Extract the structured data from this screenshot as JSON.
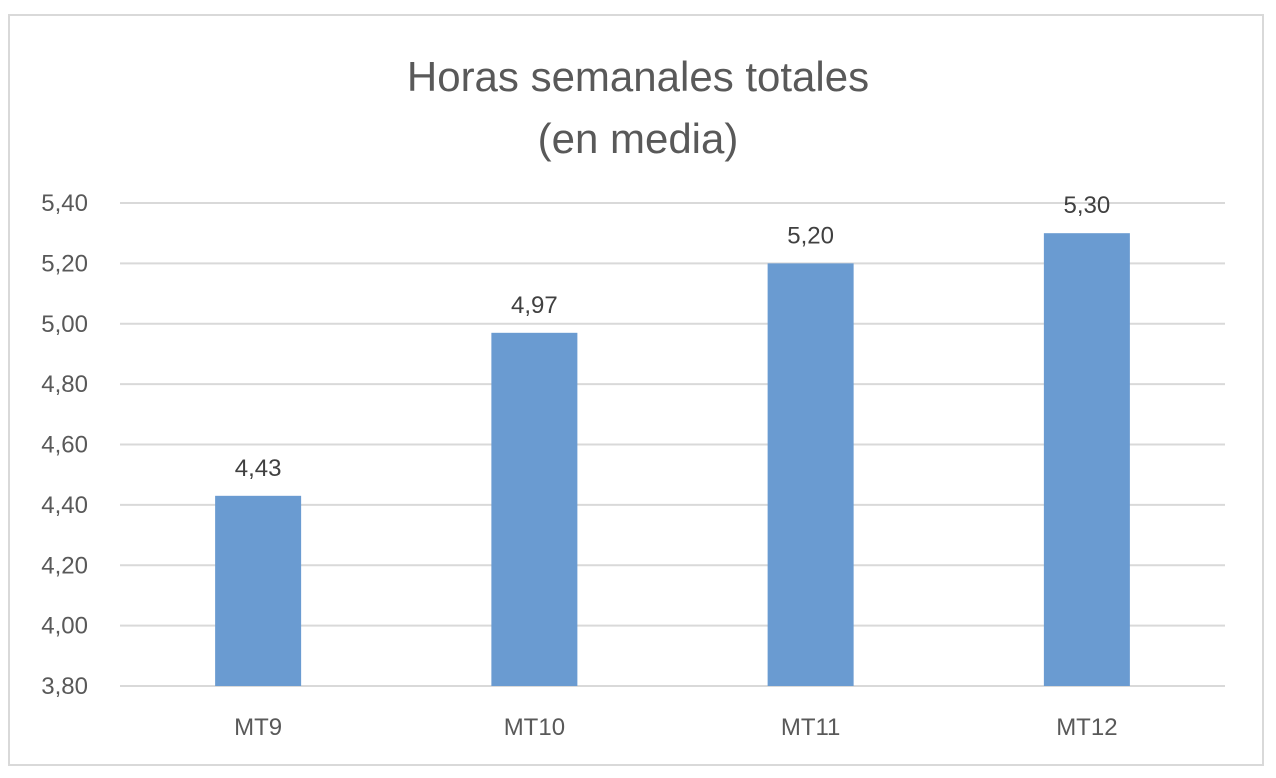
{
  "chart_data": {
    "type": "bar",
    "title_lines": [
      "Horas semanales totales",
      "(en media)"
    ],
    "categories": [
      "MT9",
      "MT10",
      "MT11",
      "MT12"
    ],
    "values": [
      4.43,
      4.97,
      5.2,
      5.3
    ],
    "value_labels": [
      "4,43",
      "4,97",
      "5,20",
      "5,30"
    ],
    "ylim": [
      3.8,
      5.4
    ],
    "y_ticks": [
      3.8,
      4.0,
      4.2,
      4.4,
      4.6,
      4.8,
      5.0,
      5.2,
      5.4
    ],
    "y_tick_labels": [
      "3,80",
      "4,00",
      "4,20",
      "4,40",
      "4,60",
      "4,80",
      "5,00",
      "5,20",
      "5,40"
    ],
    "xlabel": "",
    "ylabel": "",
    "grid": true,
    "legend": "none",
    "bar_color": "#6a9bd1",
    "grid_color": "#d9d9d9"
  }
}
